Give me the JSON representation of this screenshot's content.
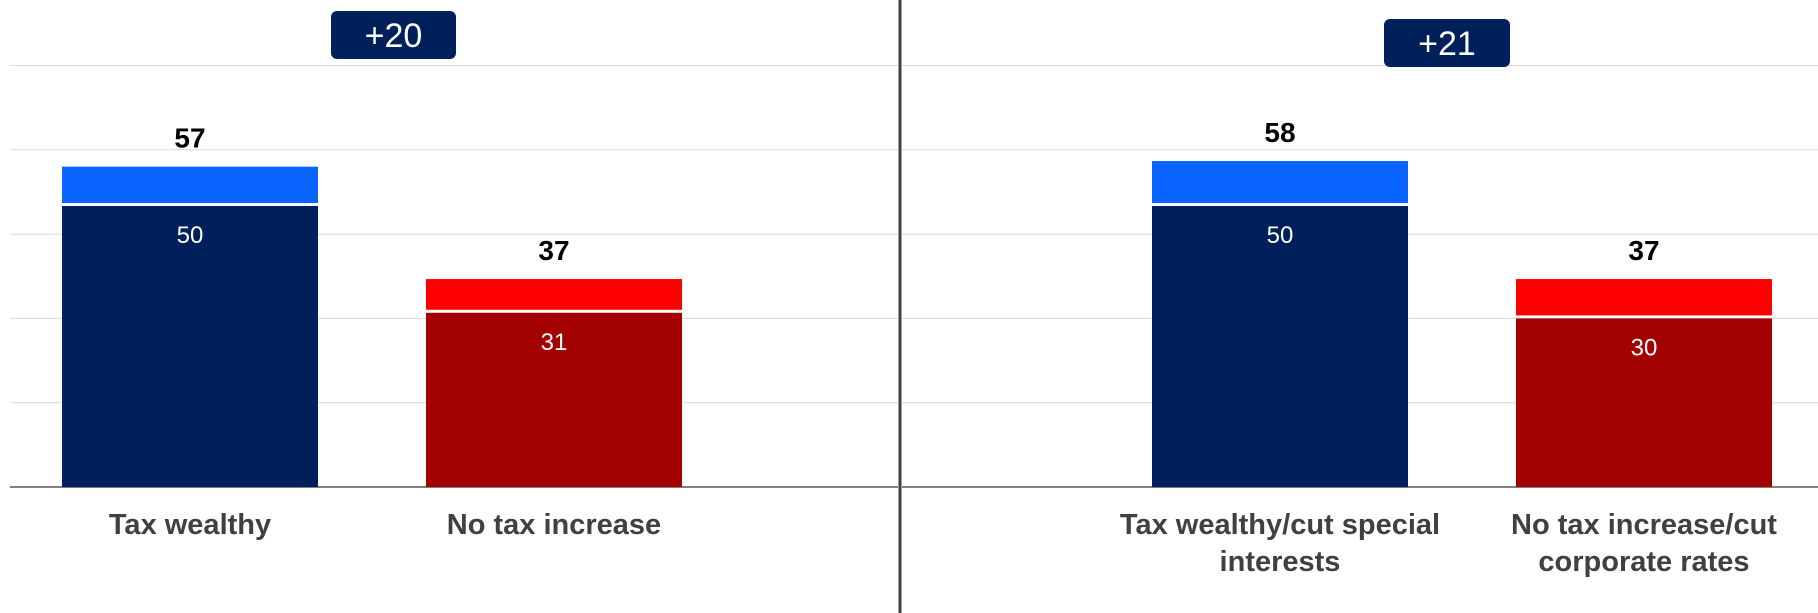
{
  "colors": {
    "strong_blue": "#00205b",
    "light_blue": "#0a64ff",
    "strong_red": "#a30000",
    "light_red": "#ff0000",
    "badge": "#00205b",
    "grid": "#d9d9d9",
    "axis": "#808080",
    "divider": "#404040"
  },
  "chart_data": [
    {
      "type": "bar",
      "stacked": true,
      "ylim": [
        0,
        75
      ],
      "grid": true,
      "difference_label": "+20",
      "categories": [
        "Tax wealthy",
        "No tax increase"
      ],
      "inner_values": [
        50,
        31
      ],
      "totals": [
        57,
        37
      ],
      "inner_labels": [
        "50",
        "31"
      ],
      "total_labels": [
        "57",
        "37"
      ]
    },
    {
      "type": "bar",
      "stacked": true,
      "ylim": [
        0,
        75
      ],
      "grid": true,
      "difference_label": "+21",
      "categories": [
        "Tax wealthy/cut special interests",
        "No tax increase/cut corporate rates"
      ],
      "category_lines": [
        [
          "Tax wealthy/cut special",
          "interests"
        ],
        [
          "No tax increase/cut",
          "corporate rates"
        ]
      ],
      "inner_values": [
        50,
        30
      ],
      "totals": [
        58,
        37
      ],
      "inner_labels": [
        "50",
        "30"
      ],
      "total_labels": [
        "58",
        "37"
      ]
    }
  ]
}
